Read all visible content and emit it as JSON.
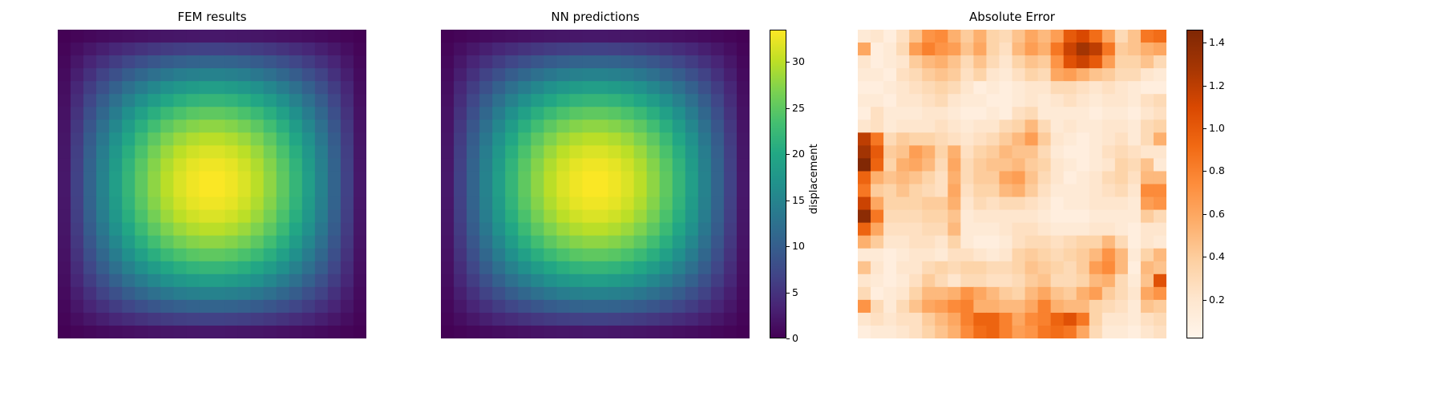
{
  "chart_data": [
    {
      "type": "heatmap",
      "title": "FEM results",
      "grid_size": [
        24,
        24
      ],
      "field": "z = zmax * sin(pi*(c+0.5)/24) * sin(pi*(r+0.5)/24)",
      "zmax": 33.5,
      "colormap": "viridis",
      "vmin": 0,
      "vmax": 33.5
    },
    {
      "type": "heatmap",
      "title": "NN predictions",
      "grid_size": [
        24,
        24
      ],
      "field": "z = zmax * sin(pi*(c+0.5)/24) * sin(pi*(r+0.5)/24)",
      "zmax": 33.5,
      "colormap": "viridis",
      "vmin": 0,
      "vmax": 33.5,
      "colorbar": {
        "label": "displacement",
        "ticks": [
          "0",
          "5",
          "10",
          "15",
          "20",
          "25",
          "30"
        ],
        "tick_values": [
          0,
          5,
          10,
          15,
          20,
          25,
          30
        ]
      }
    },
    {
      "type": "heatmap",
      "title": "Absolute Error",
      "grid_size": [
        24,
        24
      ],
      "colormap": "Oranges",
      "vmin": 0.02,
      "vmax": 1.46,
      "colorbar": {
        "label": "",
        "ticks": [
          "0.2",
          "0.4",
          "0.6",
          "0.8",
          "1.0",
          "1.2",
          "1.4"
        ],
        "tick_values": [
          0.2,
          0.4,
          0.6,
          0.8,
          1.0,
          1.2,
          1.4
        ]
      },
      "rows": [
        [
          0.15,
          0.2,
          0.1,
          0.25,
          0.45,
          0.7,
          0.75,
          0.55,
          0.4,
          0.55,
          0.35,
          0.3,
          0.45,
          0.6,
          0.5,
          0.65,
          1.0,
          1.1,
          0.9,
          0.6,
          0.3,
          0.45,
          0.85,
          0.9
        ],
        [
          0.6,
          0.1,
          0.15,
          0.3,
          0.65,
          0.8,
          0.7,
          0.65,
          0.45,
          0.6,
          0.35,
          0.25,
          0.5,
          0.65,
          0.55,
          0.85,
          1.15,
          1.3,
          1.2,
          0.85,
          0.4,
          0.45,
          0.55,
          0.6
        ],
        [
          0.2,
          0.1,
          0.15,
          0.2,
          0.4,
          0.5,
          0.55,
          0.45,
          0.3,
          0.45,
          0.3,
          0.2,
          0.35,
          0.45,
          0.4,
          0.7,
          1.05,
          1.15,
          1.0,
          0.65,
          0.35,
          0.35,
          0.45,
          0.3
        ],
        [
          0.15,
          0.15,
          0.1,
          0.25,
          0.3,
          0.4,
          0.45,
          0.4,
          0.25,
          0.35,
          0.2,
          0.15,
          0.25,
          0.35,
          0.3,
          0.6,
          0.65,
          0.55,
          0.45,
          0.4,
          0.3,
          0.3,
          0.2,
          0.15
        ],
        [
          0.1,
          0.1,
          0.15,
          0.2,
          0.25,
          0.3,
          0.35,
          0.3,
          0.2,
          0.1,
          0.15,
          0.1,
          0.15,
          0.2,
          0.2,
          0.3,
          0.3,
          0.25,
          0.2,
          0.25,
          0.2,
          0.15,
          0.1,
          0.1
        ],
        [
          0.15,
          0.15,
          0.1,
          0.2,
          0.2,
          0.25,
          0.3,
          0.2,
          0.15,
          0.15,
          0.1,
          0.1,
          0.15,
          0.2,
          0.15,
          0.2,
          0.25,
          0.2,
          0.15,
          0.2,
          0.2,
          0.15,
          0.25,
          0.3
        ],
        [
          0.1,
          0.25,
          0.15,
          0.15,
          0.15,
          0.2,
          0.2,
          0.15,
          0.1,
          0.1,
          0.15,
          0.1,
          0.25,
          0.3,
          0.15,
          0.15,
          0.15,
          0.15,
          0.1,
          0.15,
          0.15,
          0.1,
          0.2,
          0.25
        ],
        [
          0.2,
          0.25,
          0.15,
          0.2,
          0.2,
          0.2,
          0.25,
          0.2,
          0.15,
          0.2,
          0.2,
          0.3,
          0.35,
          0.5,
          0.3,
          0.15,
          0.2,
          0.15,
          0.15,
          0.2,
          0.2,
          0.15,
          0.3,
          0.35
        ],
        [
          1.2,
          0.85,
          0.3,
          0.4,
          0.35,
          0.35,
          0.3,
          0.25,
          0.2,
          0.25,
          0.3,
          0.4,
          0.5,
          0.65,
          0.4,
          0.2,
          0.15,
          0.1,
          0.15,
          0.2,
          0.25,
          0.15,
          0.3,
          0.55
        ],
        [
          1.3,
          1.0,
          0.4,
          0.45,
          0.65,
          0.55,
          0.35,
          0.55,
          0.25,
          0.35,
          0.4,
          0.5,
          0.45,
          0.45,
          0.3,
          0.15,
          0.1,
          0.1,
          0.15,
          0.25,
          0.3,
          0.25,
          0.2,
          0.2
        ],
        [
          1.45,
          0.95,
          0.35,
          0.55,
          0.6,
          0.5,
          0.3,
          0.6,
          0.3,
          0.4,
          0.45,
          0.45,
          0.5,
          0.4,
          0.35,
          0.2,
          0.15,
          0.1,
          0.15,
          0.2,
          0.35,
          0.3,
          0.45,
          0.15
        ],
        [
          0.95,
          0.55,
          0.45,
          0.5,
          0.45,
          0.35,
          0.25,
          0.55,
          0.3,
          0.4,
          0.4,
          0.6,
          0.65,
          0.45,
          0.3,
          0.2,
          0.1,
          0.15,
          0.2,
          0.3,
          0.35,
          0.25,
          0.5,
          0.5
        ],
        [
          0.85,
          0.4,
          0.35,
          0.45,
          0.35,
          0.3,
          0.25,
          0.6,
          0.25,
          0.35,
          0.35,
          0.5,
          0.55,
          0.4,
          0.25,
          0.15,
          0.15,
          0.15,
          0.2,
          0.25,
          0.3,
          0.2,
          0.75,
          0.75
        ],
        [
          1.15,
          0.6,
          0.35,
          0.35,
          0.35,
          0.4,
          0.4,
          0.55,
          0.2,
          0.3,
          0.25,
          0.3,
          0.3,
          0.25,
          0.2,
          0.1,
          0.15,
          0.15,
          0.2,
          0.2,
          0.2,
          0.15,
          0.65,
          0.7
        ],
        [
          1.4,
          0.85,
          0.3,
          0.3,
          0.3,
          0.35,
          0.35,
          0.45,
          0.15,
          0.2,
          0.2,
          0.2,
          0.2,
          0.2,
          0.15,
          0.1,
          0.1,
          0.1,
          0.15,
          0.15,
          0.15,
          0.15,
          0.4,
          0.3
        ],
        [
          0.95,
          0.6,
          0.25,
          0.25,
          0.25,
          0.3,
          0.3,
          0.5,
          0.15,
          0.15,
          0.15,
          0.2,
          0.25,
          0.25,
          0.2,
          0.15,
          0.15,
          0.15,
          0.2,
          0.2,
          0.15,
          0.1,
          0.2,
          0.2
        ],
        [
          0.55,
          0.4,
          0.2,
          0.2,
          0.25,
          0.25,
          0.2,
          0.35,
          0.15,
          0.1,
          0.1,
          0.15,
          0.25,
          0.3,
          0.3,
          0.25,
          0.3,
          0.35,
          0.35,
          0.5,
          0.3,
          0.1,
          0.2,
          0.15
        ],
        [
          0.15,
          0.15,
          0.1,
          0.15,
          0.2,
          0.2,
          0.15,
          0.25,
          0.25,
          0.2,
          0.15,
          0.2,
          0.35,
          0.4,
          0.35,
          0.3,
          0.35,
          0.4,
          0.5,
          0.7,
          0.5,
          0.15,
          0.35,
          0.5
        ],
        [
          0.45,
          0.2,
          0.1,
          0.2,
          0.2,
          0.3,
          0.35,
          0.3,
          0.35,
          0.35,
          0.3,
          0.3,
          0.35,
          0.45,
          0.4,
          0.35,
          0.3,
          0.4,
          0.65,
          0.75,
          0.5,
          0.1,
          0.5,
          0.45
        ],
        [
          0.2,
          0.15,
          0.1,
          0.15,
          0.25,
          0.4,
          0.3,
          0.2,
          0.3,
          0.3,
          0.25,
          0.25,
          0.3,
          0.4,
          0.45,
          0.3,
          0.3,
          0.35,
          0.5,
          0.55,
          0.3,
          0.15,
          0.45,
          1.05
        ],
        [
          0.3,
          0.1,
          0.15,
          0.2,
          0.35,
          0.5,
          0.5,
          0.55,
          0.7,
          0.6,
          0.5,
          0.4,
          0.35,
          0.5,
          0.6,
          0.45,
          0.4,
          0.55,
          0.65,
          0.4,
          0.3,
          0.2,
          0.6,
          0.7
        ],
        [
          0.7,
          0.3,
          0.15,
          0.3,
          0.45,
          0.6,
          0.65,
          0.75,
          0.8,
          0.55,
          0.55,
          0.5,
          0.5,
          0.6,
          0.8,
          0.55,
          0.5,
          0.5,
          0.35,
          0.3,
          0.25,
          0.15,
          0.45,
          0.4
        ],
        [
          0.2,
          0.25,
          0.2,
          0.25,
          0.25,
          0.4,
          0.5,
          0.6,
          0.8,
          0.95,
          0.95,
          0.8,
          0.6,
          0.75,
          0.8,
          0.95,
          1.05,
          0.85,
          0.35,
          0.2,
          0.2,
          0.15,
          0.25,
          0.3
        ],
        [
          0.1,
          0.15,
          0.15,
          0.2,
          0.25,
          0.35,
          0.45,
          0.55,
          0.75,
          0.9,
          0.95,
          0.8,
          0.65,
          0.7,
          0.85,
          0.9,
          0.85,
          0.6,
          0.3,
          0.15,
          0.15,
          0.1,
          0.2,
          0.25
        ]
      ]
    }
  ]
}
